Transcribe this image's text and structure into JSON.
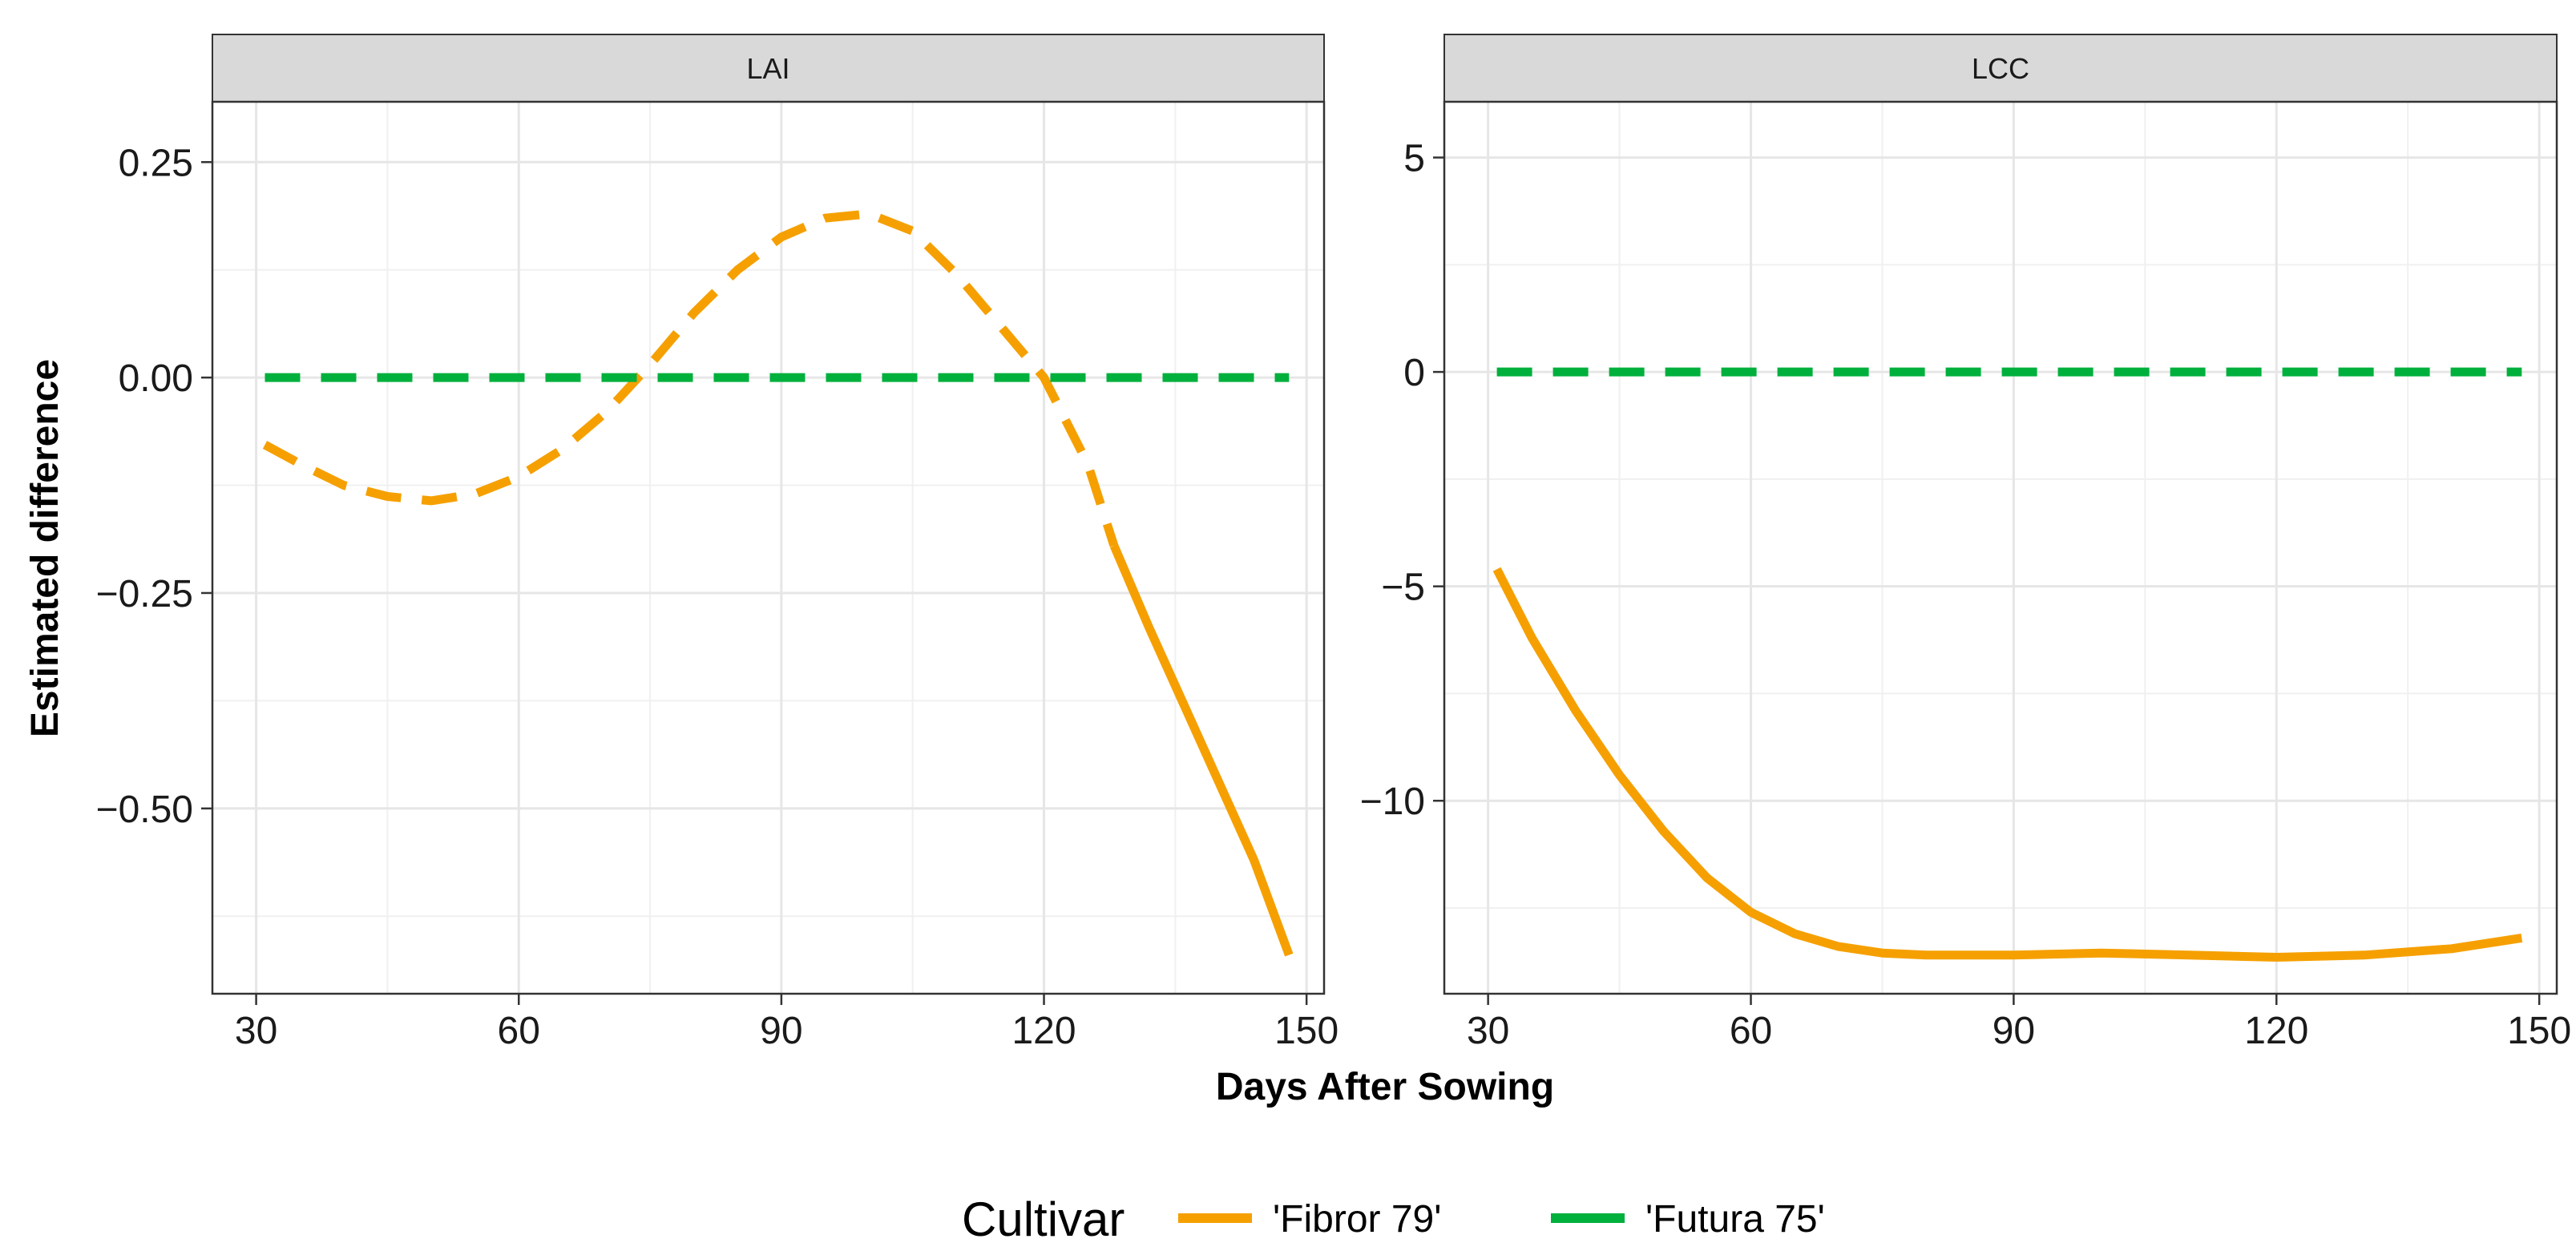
{
  "chart_data": {
    "type": "line",
    "xlabel": "Days After Sowing",
    "ylabel": "Estimated difference",
    "legend": {
      "title": "Cultivar",
      "position": "bottom",
      "entries": [
        {
          "label": "'Fibror 79'",
          "color": "#f5a000"
        },
        {
          "label": "'Futura 75'",
          "color": "#00b03c"
        }
      ]
    },
    "panels": [
      {
        "title": "LAI",
        "xlim": [
          25,
          152
        ],
        "ylim": [
          -0.715,
          0.32
        ],
        "xticks": [
          30,
          60,
          90,
          120,
          150
        ],
        "xtick_labels": [
          "30",
          "60",
          "90",
          "120",
          "150"
        ],
        "yticks": [
          0.25,
          0.0,
          -0.25,
          -0.5
        ],
        "ytick_labels": [
          "0.25",
          "0.00",
          "−0.25",
          "−0.50"
        ],
        "series": [
          {
            "name": "'Fibror 79'",
            "color": "#f5a000",
            "segments": [
              {
                "style": "dashed",
                "x": [
                  31,
                  35,
                  40,
                  45,
                  50,
                  55,
                  60,
                  65,
                  70,
                  75,
                  80,
                  85,
                  90,
                  95,
                  100,
                  105,
                  110,
                  115,
                  120,
                  125,
                  128
                ],
                "y": [
                  -0.078,
                  -0.1,
                  -0.125,
                  -0.138,
                  -0.143,
                  -0.135,
                  -0.115,
                  -0.083,
                  -0.04,
                  0.015,
                  0.075,
                  0.125,
                  0.163,
                  0.185,
                  0.19,
                  0.17,
                  0.12,
                  0.06,
                  0.0,
                  -0.1,
                  -0.195
                ]
              },
              {
                "style": "solid",
                "x": [
                  128,
                  132,
                  136,
                  140,
                  144,
                  148
                ],
                "y": [
                  -0.195,
                  -0.29,
                  -0.38,
                  -0.47,
                  -0.56,
                  -0.67
                ]
              }
            ]
          },
          {
            "name": "'Futura 75'",
            "color": "#00b03c",
            "segments": [
              {
                "style": "dashed",
                "x": [
                  31,
                  148
                ],
                "y": [
                  0.0,
                  0.0
                ]
              }
            ]
          }
        ]
      },
      {
        "title": "LCC",
        "xlim": [
          25,
          152
        ],
        "ylim": [
          -14.5,
          6.3
        ],
        "xticks": [
          30,
          60,
          90,
          120,
          150
        ],
        "xtick_labels": [
          "30",
          "60",
          "90",
          "120",
          "150"
        ],
        "yticks": [
          5,
          0,
          -5,
          -10
        ],
        "ytick_labels": [
          "5",
          "0",
          "−5",
          "−10"
        ],
        "series": [
          {
            "name": "'Fibror 79'",
            "color": "#f5a000",
            "segments": [
              {
                "style": "solid",
                "x": [
                  31,
                  35,
                  40,
                  45,
                  50,
                  55,
                  60,
                  65,
                  70,
                  75,
                  80,
                  85,
                  90,
                  100,
                  110,
                  120,
                  130,
                  140,
                  148
                ],
                "y": [
                  -4.6,
                  -6.2,
                  -7.9,
                  -9.4,
                  -10.7,
                  -11.8,
                  -12.6,
                  -13.1,
                  -13.4,
                  -13.55,
                  -13.6,
                  -13.6,
                  -13.6,
                  -13.55,
                  -13.6,
                  -13.65,
                  -13.6,
                  -13.45,
                  -13.2
                ]
              }
            ]
          },
          {
            "name": "'Futura 75'",
            "color": "#00b03c",
            "segments": [
              {
                "style": "dashed",
                "x": [
                  31,
                  148
                ],
                "y": [
                  0.0,
                  0.0
                ]
              }
            ]
          }
        ]
      }
    ]
  }
}
